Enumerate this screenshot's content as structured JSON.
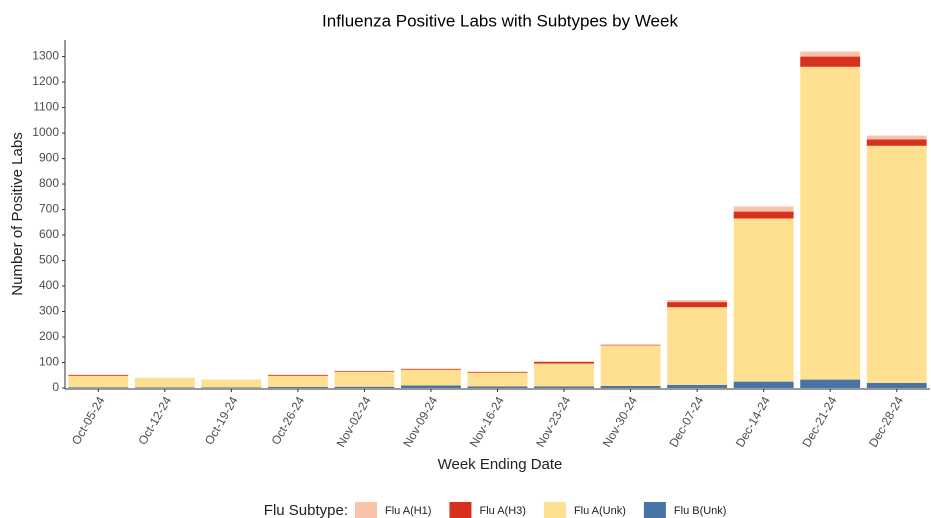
{
  "chart_data": {
    "type": "stacked-bar",
    "title": "Influenza Positive Labs with Subtypes by Week",
    "x_label": "Week Ending Date",
    "y_label": "Number of Positive Labs",
    "legend_title": "Flu Subtype:",
    "legend_position": "bottom",
    "categories": [
      "Oct-05-24",
      "Oct-12-24",
      "Oct-19-24",
      "Oct-26-24",
      "Nov-02-24",
      "Nov-09-24",
      "Nov-16-24",
      "Nov-23-24",
      "Nov-30-24",
      "Dec-07-24",
      "Dec-14-24",
      "Dec-21-24",
      "Dec-28-24"
    ],
    "series": [
      {
        "name": "Flu A(H1)",
        "color": "#f9c3a9",
        "values": [
          2,
          1,
          1,
          2,
          2,
          3,
          2,
          3,
          4,
          8,
          20,
          20,
          15
        ]
      },
      {
        "name": "Flu A(H3)",
        "color": "#d7301f",
        "values": [
          3,
          0,
          0,
          3,
          3,
          3,
          3,
          6,
          2,
          20,
          27,
          40,
          25
        ]
      },
      {
        "name": "Flu A(Unk)",
        "color": "#fee090",
        "values": [
          45,
          37,
          30,
          44,
          58,
          61,
          54,
          90,
          158,
          305,
          640,
          1227,
          930
        ]
      },
      {
        "name": "Flu B(Unk)",
        "color": "#4a74a6",
        "values": [
          3,
          2,
          2,
          4,
          5,
          10,
          6,
          6,
          8,
          12,
          25,
          33,
          20
        ]
      }
    ],
    "ylim": [
      0,
      1365
    ],
    "yticks": [
      0,
      100,
      200,
      300,
      400,
      500,
      600,
      700,
      800,
      900,
      1000,
      1100,
      1200,
      1300
    ]
  }
}
